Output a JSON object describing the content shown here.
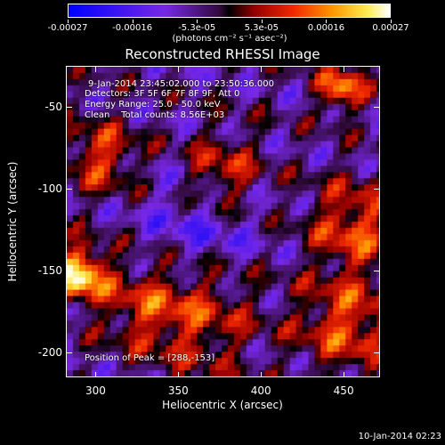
{
  "colorbar": {
    "tick_labels": [
      "-0.00027",
      "-0.00016",
      "-5.3e-05",
      "5.3e-05",
      "0.00016",
      "0.00027"
    ],
    "units": "(photons cm⁻² s⁻¹ asec⁻²)"
  },
  "title": "Reconstructed RHESSI Image",
  "info": {
    "time_range": "9-Jan-2014 23:45:02.000 to 23:50:36.000",
    "detectors": "Detectors: 3F 5F 6F 7F 8F 9F, Att 0",
    "energy_range": "Energy Range: 25.0 - 50.0 keV",
    "clean_counts": "Clean    Total counts: 8.56E+03",
    "peak_position": "Position of Peak = [288,-153]"
  },
  "axes": {
    "xlabel": "Heliocentric X (arcsec)",
    "ylabel": "Heliocentric Y (arcsec)",
    "xticks": [
      "300",
      "350",
      "400",
      "450"
    ],
    "yticks": [
      "-50",
      "-100",
      "-150",
      "-200"
    ]
  },
  "timestamp": "10-Jan-2014 02:23"
}
